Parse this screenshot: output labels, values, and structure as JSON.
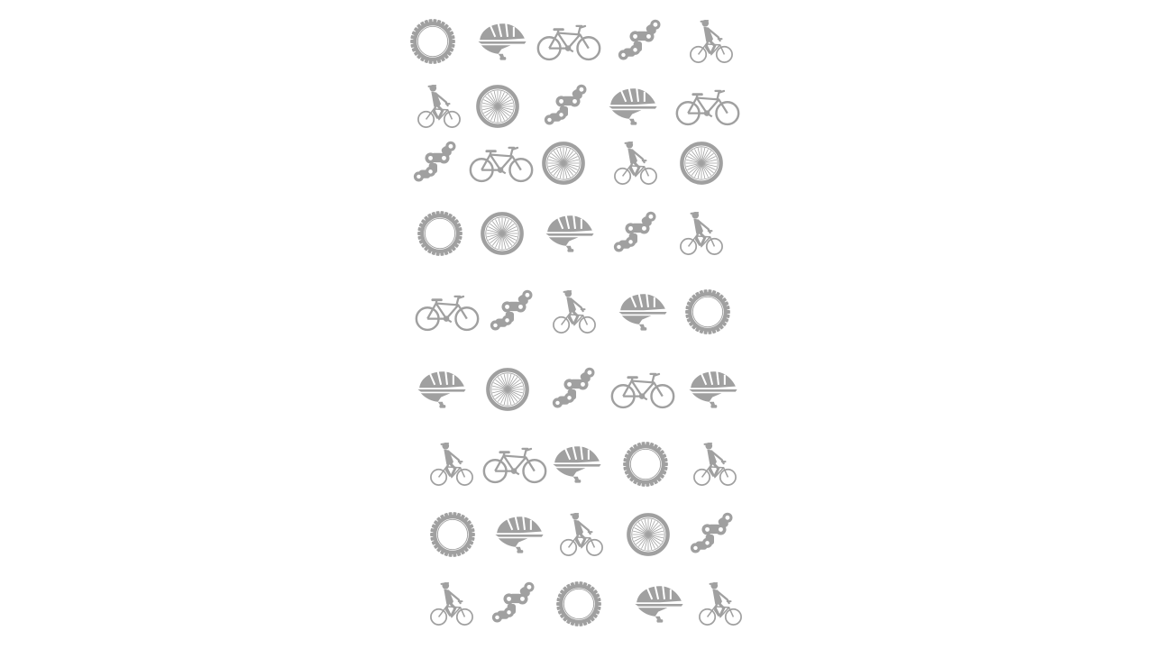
{
  "pattern": {
    "color": "#a0a0a0",
    "rows": [
      [
        "sprocket-icon",
        "helmet-icon",
        "bicycle-icon",
        "chain-link-icon",
        "cyclist-icon"
      ],
      [
        "cyclist-icon",
        "wheel-icon",
        "chain-link-icon",
        "helmet-icon",
        "bicycle-icon"
      ],
      [
        "chain-link-icon",
        "bicycle-icon",
        "wheel-icon",
        "cyclist-icon",
        "wheel-icon"
      ],
      [
        "sprocket-icon",
        "wheel-icon",
        "helmet-icon",
        "chain-link-icon",
        "cyclist-icon"
      ],
      [
        "bicycle-icon",
        "chain-link-icon",
        "cyclist-icon",
        "helmet-icon",
        "sprocket-icon"
      ],
      [
        "helmet-icon",
        "wheel-icon",
        "chain-link-icon",
        "bicycle-icon",
        "helmet-icon"
      ],
      [
        "cyclist-icon",
        "bicycle-icon",
        "helmet-icon",
        "sprocket-icon",
        "cyclist-icon"
      ],
      [
        "sprocket-icon",
        "helmet-icon",
        "cyclist-icon",
        "wheel-icon",
        "chain-link-icon"
      ],
      [
        "cyclist-icon",
        "chain-link-icon",
        "sprocket-icon",
        "helmet-icon",
        "cyclist-icon"
      ]
    ]
  }
}
